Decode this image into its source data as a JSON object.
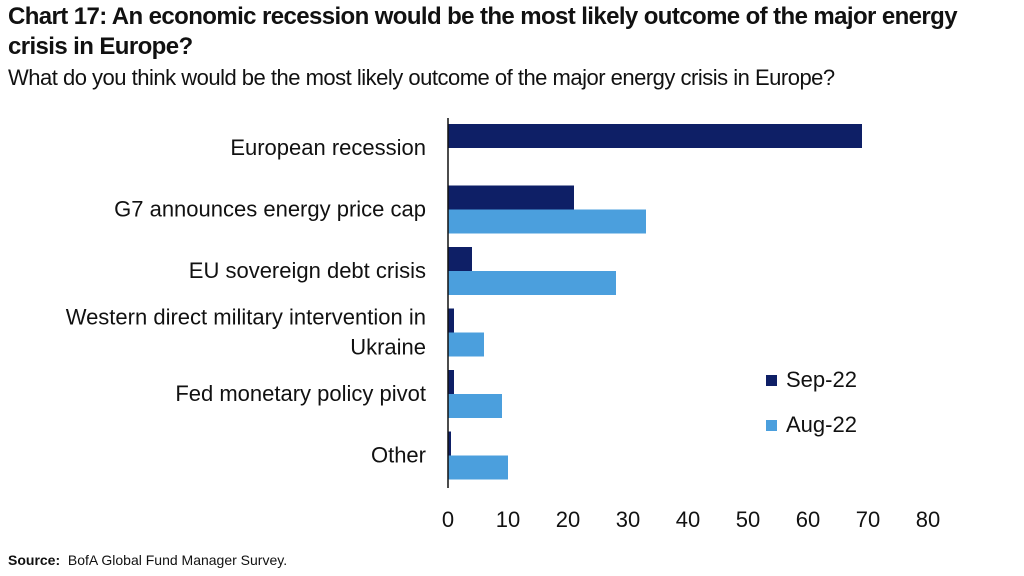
{
  "title": "Chart 17: An economic recession would be the most likely outcome of the major energy crisis in Europe?",
  "subtitle": "What do you think would be the most likely outcome of the major energy crisis in Europe?",
  "source": {
    "label": "Source:",
    "text": "BofA Global Fund Manager Survey."
  },
  "chart_data": {
    "type": "bar",
    "orientation": "horizontal",
    "categories": [
      "European recession",
      "G7 announces energy price cap",
      "EU sovereign debt crisis",
      "Western direct military intervention in Ukraine",
      "Fed monetary policy pivot",
      "Other"
    ],
    "category_lines": [
      [
        "European recession"
      ],
      [
        "G7 announces energy price cap"
      ],
      [
        "EU sovereign debt crisis"
      ],
      [
        "Western direct military intervention in",
        "Ukraine"
      ],
      [
        "Fed monetary policy pivot"
      ],
      [
        "Other"
      ]
    ],
    "series": [
      {
        "name": "Sep-22",
        "color": "#0e1f66",
        "values": [
          69,
          21,
          4,
          1,
          1,
          0.5
        ]
      },
      {
        "name": "Aug-22",
        "color": "#4b9fdd",
        "values": [
          null,
          33,
          28,
          6,
          9,
          10
        ]
      }
    ],
    "xlim": [
      0,
      80
    ],
    "xticks": [
      0,
      10,
      20,
      30,
      40,
      50,
      60,
      70,
      80
    ],
    "grid": false,
    "legend_position": "bottom-right"
  }
}
